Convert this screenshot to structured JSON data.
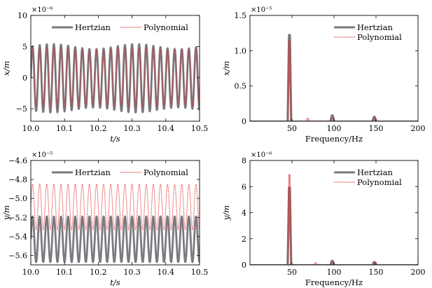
{
  "chart_data": [
    {
      "type": "line",
      "xlabel": "t/s",
      "ylabel": "x/m",
      "exponent": "×10⁻⁶",
      "xlim": [
        10.0,
        10.5
      ],
      "ylim": [
        -7,
        10
      ],
      "xticks": [
        10.0,
        10.1,
        10.2,
        10.3,
        10.4,
        10.5
      ],
      "xtick_labels": [
        "10.0",
        "10.1",
        "10.2",
        "10.3",
        "10.4",
        "10.5"
      ],
      "yticks": [
        -5,
        0,
        5,
        10
      ],
      "ytick_labels": [
        "−5",
        "0",
        "5",
        "10"
      ],
      "legend_position": "top",
      "series": [
        {
          "name": "Hertzian",
          "style": "solid",
          "color": "#7a7a80",
          "frequency_hz": 47.5,
          "center": -0.1,
          "amplitude": 5.1,
          "beat_amplitude": 0.4,
          "beat_frequency_hz": 4
        },
        {
          "name": "Polynomial",
          "style": "dotted",
          "color": "#e03030",
          "frequency_hz": 47.5,
          "center": 0.0,
          "amplitude": 4.6,
          "beat_amplitude": 0.2,
          "beat_frequency_hz": 4
        }
      ]
    },
    {
      "type": "spectrum",
      "xlabel": "Frequency/Hz",
      "ylabel": "x/m",
      "exponent": "×10⁻⁵",
      "xlim": [
        0,
        200
      ],
      "ylim": [
        0,
        1.5
      ],
      "xticks": [
        50,
        100,
        150,
        200
      ],
      "xtick_labels": [
        "50",
        "100",
        "150",
        "200"
      ],
      "yticks": [
        0,
        0.5,
        1.0,
        1.5
      ],
      "ytick_labels": [
        "0",
        "0.5",
        "1.0",
        "1.5"
      ],
      "legend_position": "top-right",
      "series": [
        {
          "name": "Hertzian",
          "style": "solid",
          "color": "#7a7a80",
          "peaks": [
            {
              "x": 47,
              "y": 1.22
            },
            {
              "x": 98,
              "y": 0.08
            },
            {
              "x": 148,
              "y": 0.06
            }
          ]
        },
        {
          "name": "Polynomial",
          "style": "dotted",
          "color": "#e03030",
          "peaks": [
            {
              "x": 47,
              "y": 1.15
            },
            {
              "x": 69,
              "y": 0.04
            },
            {
              "x": 98,
              "y": 0.05
            },
            {
              "x": 148,
              "y": 0.04
            }
          ]
        }
      ]
    },
    {
      "type": "line",
      "xlabel": "t/s",
      "ylabel": "y/m",
      "exponent": "×10⁻⁵",
      "xlim": [
        10.0,
        10.5
      ],
      "ylim": [
        -5.7,
        -4.6
      ],
      "xticks": [
        10.0,
        10.1,
        10.2,
        10.3,
        10.4,
        10.5
      ],
      "xtick_labels": [
        "10.0",
        "10.1",
        "10.2",
        "10.3",
        "10.4",
        "10.5"
      ],
      "yticks": [
        -5.6,
        -5.4,
        -5.2,
        -5.0,
        -4.8,
        -4.6
      ],
      "ytick_labels": [
        "−5.6",
        "−5.4",
        "−5.2",
        "−5.0",
        "−4.8",
        "−4.6"
      ],
      "legend_position": "top",
      "series": [
        {
          "name": "Hertzian",
          "style": "solid",
          "color": "#7a7a80",
          "frequency_hz": 47.5,
          "center": -5.43,
          "amplitude": 0.24,
          "beat_amplitude": 0.0,
          "beat_frequency_hz": 0
        },
        {
          "name": "Polynomial",
          "style": "dotted",
          "color": "#e03030",
          "frequency_hz": 47.5,
          "center": -5.09,
          "amplitude": 0.24,
          "beat_amplitude": 0.0,
          "beat_frequency_hz": 0
        }
      ]
    },
    {
      "type": "spectrum",
      "xlabel": "Frequency/Hz",
      "ylabel": "y/m",
      "exponent": "×10⁻⁶",
      "xlim": [
        0,
        200
      ],
      "ylim": [
        0,
        8
      ],
      "xticks": [
        50,
        100,
        150,
        200
      ],
      "xtick_labels": [
        "50",
        "100",
        "150",
        "200"
      ],
      "yticks": [
        0,
        2,
        4,
        6,
        8
      ],
      "ytick_labels": [
        "0",
        "2",
        "4",
        "6",
        "8"
      ],
      "legend_position": "top-right",
      "series": [
        {
          "name": "Hertzian",
          "style": "solid",
          "color": "#7a7a80",
          "peaks": [
            {
              "x": 47,
              "y": 5.9
            },
            {
              "x": 98,
              "y": 0.3
            },
            {
              "x": 148,
              "y": 0.2
            }
          ]
        },
        {
          "name": "Polynomial",
          "style": "dotted",
          "color": "#e03030",
          "peaks": [
            {
              "x": 47,
              "y": 6.9
            },
            {
              "x": 78,
              "y": 0.15
            },
            {
              "x": 98,
              "y": 0.2
            },
            {
              "x": 148,
              "y": 0.15
            }
          ]
        }
      ]
    }
  ]
}
